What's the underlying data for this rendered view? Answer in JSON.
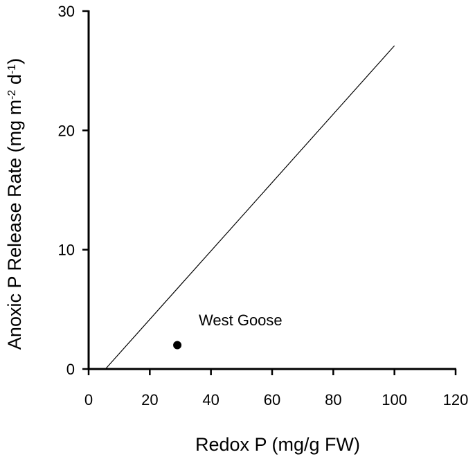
{
  "chart_data": {
    "type": "scatter",
    "xlabel": "Redox P (mg/g FW)",
    "ylabel": {
      "parts": [
        {
          "text": "Anoxic P Release Rate (mg m",
          "sup": false
        },
        {
          "text": "-2",
          "sup": true
        },
        {
          "text": " d",
          "sup": false
        },
        {
          "text": "-1",
          "sup": true
        },
        {
          "text": ")",
          "sup": false
        }
      ]
    },
    "xlim": [
      0,
      120
    ],
    "ylim": [
      0,
      30
    ],
    "x_ticks": [
      0,
      20,
      40,
      60,
      80,
      100,
      120
    ],
    "y_ticks": [
      0,
      10,
      20,
      30
    ],
    "grid": false,
    "series": [
      {
        "kind": "points",
        "points": [
          {
            "x": 29,
            "y": 2
          }
        ]
      },
      {
        "kind": "line",
        "points": [
          {
            "x": 5.5,
            "y": 0
          },
          {
            "x": 100,
            "y": 27.1
          }
        ]
      }
    ],
    "annotations": [
      {
        "text": "West Goose",
        "x": 36,
        "y": 4
      }
    ]
  }
}
